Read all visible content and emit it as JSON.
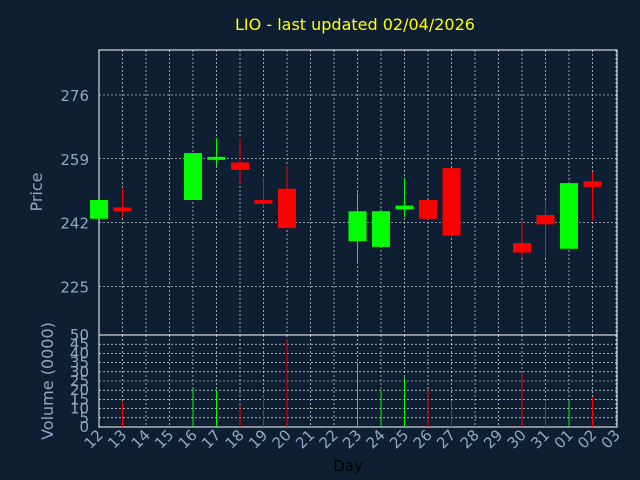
{
  "chart_data": [
    {
      "type": "candlestick",
      "title": "LIO - last updated 02/04/2026",
      "ylabel": "Price",
      "ylim": [
        212,
        288
      ],
      "yticks": [
        225,
        242,
        259,
        276
      ],
      "grid": true,
      "colors": {
        "up": "#00ff00",
        "down": "#ff0000",
        "background": "#0e1f33",
        "grid": "#ffffff",
        "text": "#8fa8c8",
        "title": "#ffff00"
      },
      "candles": [
        {
          "day": "12",
          "open": 243.0,
          "high": 248.0,
          "low": 243.0,
          "close": 248.0
        },
        {
          "day": "13",
          "open": 246.0,
          "high": 251.0,
          "low": 243.5,
          "close": 245.0
        },
        {
          "day": "16",
          "open": 248.0,
          "high": 260.5,
          "low": 248.0,
          "close": 260.5
        },
        {
          "day": "17",
          "open": 259.0,
          "high": 264.5,
          "low": 257.0,
          "close": 259.5
        },
        {
          "day": "18",
          "open": 258.0,
          "high": 264.5,
          "low": 252.5,
          "close": 256.0
        },
        {
          "day": "19",
          "open": 248.0,
          "high": 254.0,
          "low": 246.0,
          "close": 247.0
        },
        {
          "day": "20",
          "open": 251.0,
          "high": 257.0,
          "low": 240.5,
          "close": 240.5
        },
        {
          "day": "23",
          "open": 237.0,
          "high": 250.0,
          "low": 231.0,
          "close": 245.0
        },
        {
          "day": "24",
          "open": 235.5,
          "high": 245.5,
          "low": 235.5,
          "close": 245.0
        },
        {
          "day": "25",
          "open": 245.5,
          "high": 254.0,
          "low": 243.5,
          "close": 246.5
        },
        {
          "day": "26",
          "open": 248.0,
          "high": 248.0,
          "low": 243.0,
          "close": 243.0
        },
        {
          "day": "27",
          "open": 256.5,
          "high": 256.5,
          "low": 238.5,
          "close": 238.5
        },
        {
          "day": "30",
          "open": 236.5,
          "high": 242.5,
          "low": 232.5,
          "close": 234.0
        },
        {
          "day": "31",
          "open": 244.0,
          "high": 248.0,
          "low": 232.5,
          "close": 241.5
        },
        {
          "day": "01",
          "open": 235.0,
          "high": 252.5,
          "low": 235.0,
          "close": 252.5
        },
        {
          "day": "02",
          "open": 253.0,
          "high": 255.5,
          "low": 242.5,
          "close": 251.5
        }
      ]
    },
    {
      "type": "bar",
      "ylabel": "Volume (0000)",
      "xlabel": "Day",
      "ylim": [
        0,
        50
      ],
      "yticks": [
        0,
        5,
        10,
        15,
        20,
        25,
        30,
        35,
        40,
        45,
        50
      ],
      "categories": [
        "12",
        "13",
        "14",
        "15",
        "16",
        "17",
        "18",
        "19",
        "20",
        "21",
        "22",
        "23",
        "24",
        "25",
        "26",
        "27",
        "28",
        "29",
        "30",
        "31",
        "01",
        "02",
        "03"
      ],
      "bars": [
        {
          "day": "13",
          "value": 14,
          "color": "down"
        },
        {
          "day": "16",
          "value": 21,
          "color": "up"
        },
        {
          "day": "17",
          "value": 20,
          "color": "up"
        },
        {
          "day": "18",
          "value": 12,
          "color": "down"
        },
        {
          "day": "19",
          "value": 17,
          "color": "down"
        },
        {
          "day": "20",
          "value": 48,
          "color": "down"
        },
        {
          "day": "23",
          "value": 35,
          "color": "up"
        },
        {
          "day": "24",
          "value": 20,
          "color": "up"
        },
        {
          "day": "25",
          "value": 27,
          "color": "up"
        },
        {
          "day": "26",
          "value": 20,
          "color": "down"
        },
        {
          "day": "27",
          "value": 14,
          "color": "down"
        },
        {
          "day": "30",
          "value": 29,
          "color": "down"
        },
        {
          "day": "31",
          "value": 13,
          "color": "down"
        },
        {
          "day": "01",
          "value": 14,
          "color": "up"
        },
        {
          "day": "02",
          "value": 16,
          "color": "down"
        }
      ]
    }
  ]
}
